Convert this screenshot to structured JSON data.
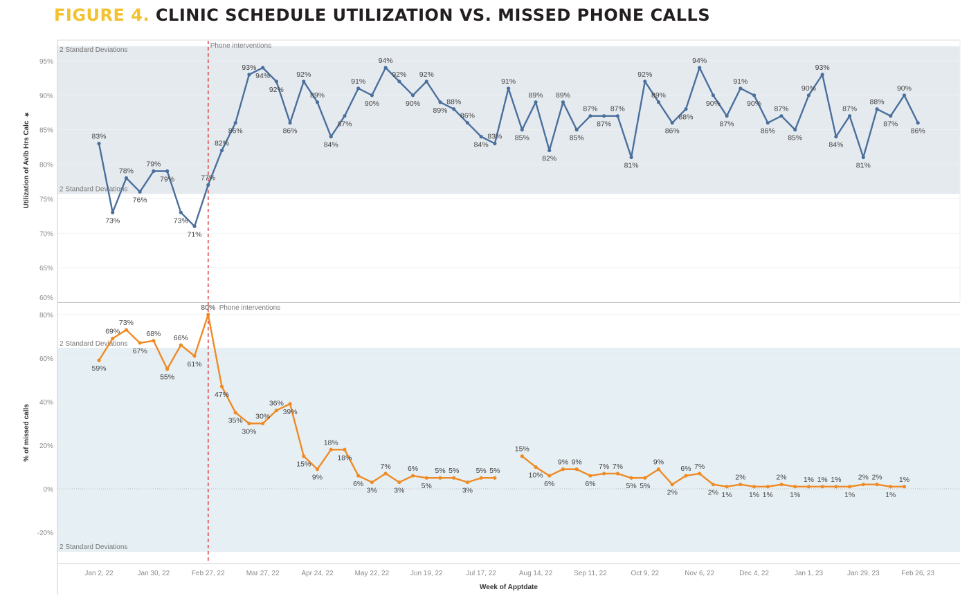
{
  "title": {
    "prefix": "FIGURE 4.",
    "main": "CLINIC SCHEDULE UTILIZATION VS. MISSED PHONE CALLS"
  },
  "colors": {
    "title_prefix": "#f2c230",
    "utilization": "#4a6f9c",
    "missed_calls": "#ef8a24",
    "reference_line": "#e04848",
    "band_top": "#e5eaef",
    "band_bottom": "#e6eff4"
  },
  "chart_data": [
    {
      "type": "line",
      "ylabel": "Utilization of Avlb Hrs Calc",
      "ylabel_icon": "pin-icon",
      "yticks": [
        "60%",
        "65%",
        "70%",
        "75%",
        "80%",
        "85%",
        "90%",
        "95%"
      ],
      "ytick_values": [
        60,
        65,
        70,
        75,
        80,
        85,
        90,
        95
      ],
      "ylim": [
        60,
        97.9
      ],
      "grid": true,
      "band": {
        "label_upper": "2 Standard Deviations",
        "label_lower": "2 Standard Deviations",
        "range": [
          75.7,
          97.1
        ]
      },
      "reference_line": {
        "label": "Phone interventions",
        "at": "Feb 27, 22"
      },
      "values": [
        83,
        73,
        78,
        76,
        79,
        79,
        73,
        71,
        77,
        82,
        86,
        93,
        94,
        92,
        86,
        92,
        89,
        84,
        87,
        91,
        90,
        94,
        92,
        90,
        92,
        89,
        88,
        86,
        84,
        83,
        91,
        85,
        89,
        82,
        89,
        85,
        87,
        87,
        87,
        81,
        92,
        89,
        86,
        88,
        94,
        90,
        87,
        91,
        90,
        86,
        87,
        85,
        90,
        93,
        84,
        87,
        81,
        88,
        87,
        90,
        86
      ]
    },
    {
      "type": "line",
      "ylabel": "% of missed calls",
      "yticks": [
        "-20%",
        "0%",
        "20%",
        "40%",
        "60%",
        "80%"
      ],
      "ytick_values": [
        -20,
        0,
        20,
        40,
        60,
        80
      ],
      "ylim": [
        -34.3,
        85.4
      ],
      "grid": true,
      "band": {
        "label_upper": "2 Standard Deviations",
        "label_lower": "2 Standard Deviations",
        "range": [
          -28.9,
          64.8
        ]
      },
      "reference_line": {
        "label": "Phone interventions",
        "at": "Feb 27, 22"
      },
      "values": [
        59,
        69,
        73,
        67,
        68,
        55,
        66,
        61,
        80,
        47,
        35,
        30,
        30,
        36,
        39,
        15,
        9,
        18,
        18,
        6,
        3,
        7,
        3,
        6,
        5,
        5,
        5,
        3,
        5,
        5,
        null,
        15,
        10,
        6,
        9,
        9,
        6,
        7,
        7,
        5,
        5,
        9,
        2,
        6,
        7,
        2,
        1,
        2,
        1,
        1,
        2,
        1,
        1,
        1,
        1,
        1,
        2,
        2,
        1,
        1,
        null
      ]
    }
  ],
  "x_axis": {
    "title": "Week of Apptdate",
    "ticks": [
      "Jan 2, 22",
      "Jan 30, 22",
      "Feb 27, 22",
      "Mar 27, 22",
      "Apr 24, 22",
      "May 22, 22",
      "Jun 19, 22",
      "Jul 17, 22",
      "Aug 14, 22",
      "Sep 11, 22",
      "Oct 9, 22",
      "Nov 6, 22",
      "Dec 4, 22",
      "Jan 1, 23",
      "Jan 29, 23",
      "Feb 26, 23"
    ],
    "weeks_between_ticks": 4
  }
}
